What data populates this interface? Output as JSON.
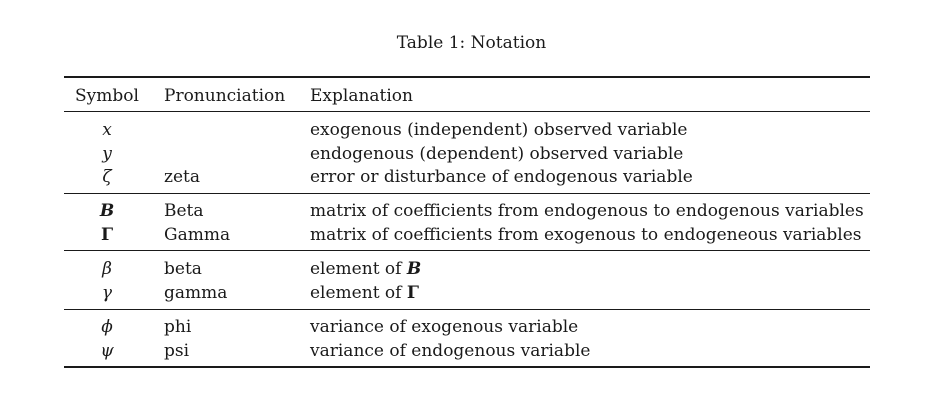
{
  "caption": "Table 1: Notation",
  "headers": {
    "symbol": "Symbol",
    "pronunciation": "Pronunciation",
    "explanation": "Explanation"
  },
  "rows": [
    {
      "symbol": "x",
      "pronunciation": "",
      "explanation": "exogenous (independent) observed variable"
    },
    {
      "symbol": "y",
      "pronunciation": "",
      "explanation": "endogenous (dependent) observed variable"
    },
    {
      "symbol": "ζ",
      "pronunciation": "zeta",
      "explanation": "error or disturbance of endogenous variable"
    },
    {
      "symbol": "B",
      "pronunciation": "Beta",
      "explanation": "matrix of coefficients from endogenous to endogenous variables"
    },
    {
      "symbol": "Γ",
      "pronunciation": "Gamma",
      "explanation": "matrix of coefficients from exogenous to endogeneous variables"
    },
    {
      "symbol": "β",
      "pronunciation": "beta",
      "explanation_prefix": "element of ",
      "explanation_symbol": "B"
    },
    {
      "symbol": "γ",
      "pronunciation": "gamma",
      "explanation_prefix": "element of ",
      "explanation_symbol": "Γ"
    },
    {
      "symbol": "ϕ",
      "pronunciation": "phi",
      "explanation": "variance of exogenous variable"
    },
    {
      "symbol": "ψ",
      "pronunciation": "psi",
      "explanation": "variance of endogenous variable"
    }
  ]
}
